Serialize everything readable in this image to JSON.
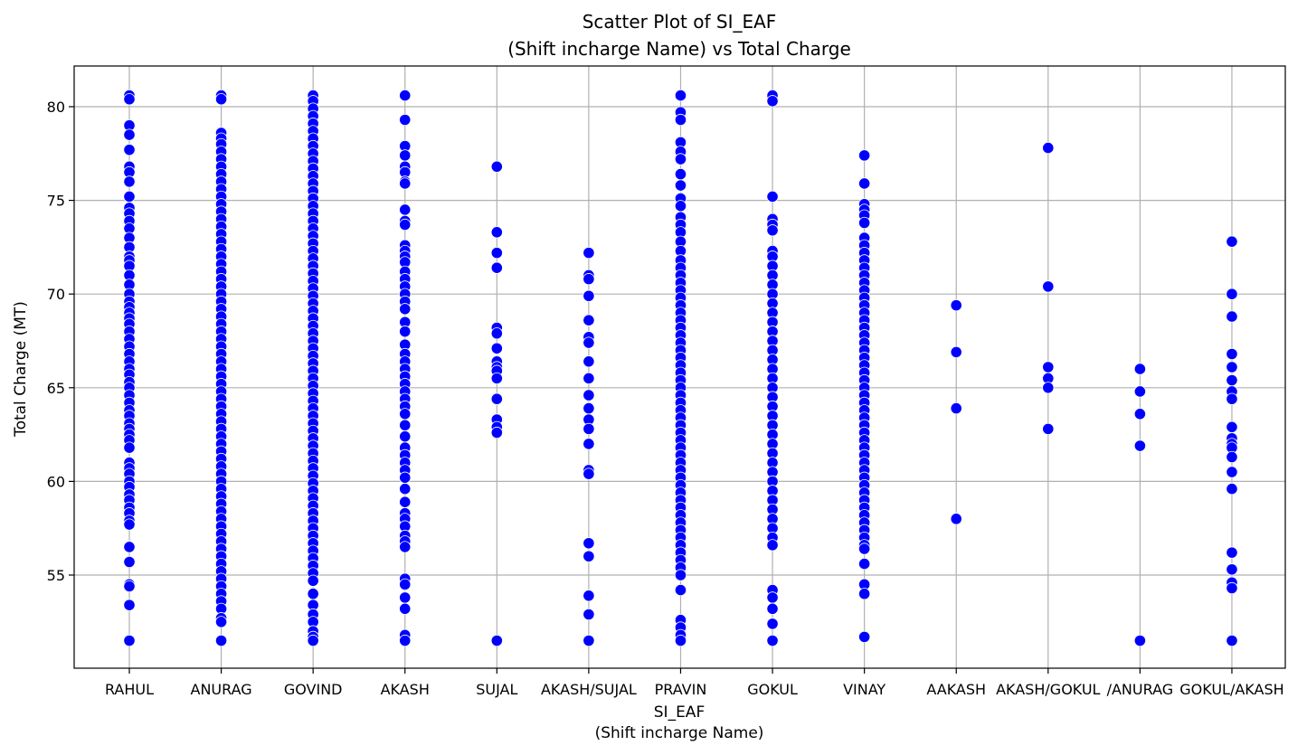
{
  "chart_data": {
    "type": "scatter",
    "title": [
      "Scatter Plot of SI_EAF",
      "(Shift incharge Name) vs Total Charge"
    ],
    "xlabel": [
      "SI_EAF",
      "(Shift incharge Name)"
    ],
    "ylabel": "Total Charge (MT)",
    "ylim": [
      50.0,
      82.2
    ],
    "yticks": [
      55,
      60,
      65,
      70,
      75,
      80
    ],
    "grid": true,
    "color": "#0000ff",
    "categories": [
      "RAHUL",
      "ANURAG",
      "GOVIND",
      "AKASH",
      "SUJAL",
      "AKASH/SUJAL",
      "PRAVIN",
      "GOKUL",
      "VINAY",
      "AAKASH",
      "AKASH/GOKUL",
      "/ANURAG",
      "GOKUL/AKASH"
    ],
    "points": {
      "RAHUL": [
        80.6,
        80.4,
        79.0,
        78.5,
        77.7,
        76.8,
        76.5,
        76.0,
        75.2,
        74.6,
        74.3,
        73.9,
        73.5,
        73.0,
        72.5,
        72.0,
        71.8,
        71.5,
        71.0,
        70.5,
        70.0,
        69.6,
        69.3,
        69.0,
        68.7,
        68.4,
        68.0,
        67.6,
        67.2,
        66.8,
        66.4,
        66.0,
        65.7,
        65.3,
        65.0,
        64.6,
        64.2,
        63.8,
        63.5,
        63.1,
        62.8,
        62.5,
        62.2,
        61.8,
        61.0,
        60.7,
        60.4,
        60.0,
        59.7,
        59.3,
        59.0,
        58.6,
        58.3,
        57.9,
        57.7,
        56.5,
        55.7,
        54.5,
        54.4,
        53.4,
        51.5
      ],
      "ANURAG": [
        80.6,
        80.4,
        78.6,
        78.3,
        78.0,
        77.6,
        77.2,
        76.8,
        76.4,
        76.0,
        75.6,
        75.2,
        74.8,
        74.4,
        74.0,
        73.6,
        73.2,
        72.8,
        72.4,
        72.0,
        71.6,
        71.2,
        70.8,
        70.4,
        70.0,
        69.6,
        69.2,
        68.8,
        68.4,
        68.0,
        67.6,
        67.2,
        66.8,
        66.4,
        66.0,
        65.6,
        65.2,
        64.8,
        64.4,
        64.0,
        63.6,
        63.2,
        62.8,
        62.4,
        62.0,
        61.6,
        61.2,
        60.8,
        60.4,
        60.0,
        59.6,
        59.2,
        58.8,
        58.4,
        58.0,
        57.6,
        57.2,
        56.8,
        56.4,
        56.0,
        55.6,
        55.2,
        54.8,
        54.4,
        54.0,
        53.6,
        53.2,
        52.7,
        52.5,
        51.5
      ],
      "GOVIND": [
        80.6,
        80.3,
        79.9,
        79.5,
        79.1,
        78.7,
        78.3,
        77.9,
        77.5,
        77.1,
        76.7,
        76.3,
        75.9,
        75.5,
        75.1,
        74.7,
        74.3,
        73.9,
        73.5,
        73.1,
        72.7,
        72.3,
        71.9,
        71.5,
        71.1,
        70.7,
        70.3,
        69.9,
        69.5,
        69.1,
        68.7,
        68.3,
        67.9,
        67.5,
        67.1,
        66.7,
        66.3,
        65.9,
        65.5,
        65.1,
        64.7,
        64.3,
        63.9,
        63.5,
        63.1,
        62.7,
        62.3,
        61.9,
        61.5,
        61.1,
        60.7,
        60.3,
        59.9,
        59.5,
        59.1,
        58.7,
        58.3,
        57.9,
        57.5,
        57.1,
        56.7,
        56.3,
        55.9,
        55.5,
        55.1,
        54.7,
        54.0,
        53.4,
        52.9,
        52.5,
        52.0,
        51.7,
        51.5
      ],
      "AKASH": [
        80.6,
        79.3,
        77.9,
        77.4,
        76.8,
        76.5,
        76.0,
        75.9,
        74.5,
        73.9,
        73.7,
        72.6,
        72.3,
        72.0,
        71.7,
        71.2,
        70.8,
        70.4,
        70.0,
        69.6,
        69.2,
        68.5,
        68.0,
        67.3,
        66.8,
        66.4,
        66.0,
        65.6,
        65.2,
        64.8,
        64.4,
        64.0,
        63.6,
        63.0,
        62.4,
        61.8,
        61.4,
        61.0,
        60.6,
        60.2,
        59.6,
        58.9,
        58.3,
        58.0,
        57.6,
        57.1,
        56.8,
        56.5,
        54.8,
        54.5,
        53.8,
        53.2,
        51.8,
        51.5
      ],
      "SUJAL": [
        76.8,
        73.3,
        72.2,
        71.4,
        68.2,
        67.9,
        67.1,
        66.4,
        66.1,
        65.9,
        65.5,
        64.4,
        63.3,
        62.9,
        62.6,
        51.5
      ],
      "AKASH/SUJAL": [
        72.2,
        71.0,
        70.8,
        69.9,
        68.6,
        67.7,
        67.4,
        66.4,
        65.5,
        64.6,
        63.9,
        63.3,
        62.8,
        62.0,
        60.6,
        60.4,
        56.7,
        56.0,
        53.9,
        52.9,
        51.5
      ],
      "PRAVIN": [
        80.6,
        79.7,
        79.3,
        78.1,
        77.6,
        77.2,
        76.4,
        75.8,
        75.1,
        74.7,
        74.1,
        73.7,
        73.3,
        72.8,
        72.3,
        71.8,
        71.4,
        71.0,
        70.6,
        70.2,
        69.8,
        69.4,
        69.0,
        68.6,
        68.2,
        67.8,
        67.4,
        67.0,
        66.6,
        66.2,
        65.8,
        65.4,
        65.0,
        64.6,
        64.2,
        63.8,
        63.4,
        63.0,
        62.6,
        62.2,
        61.8,
        61.4,
        61.0,
        60.6,
        60.2,
        59.8,
        59.4,
        59.0,
        58.6,
        58.2,
        57.8,
        57.4,
        57.0,
        56.6,
        56.2,
        55.8,
        55.4,
        55.0,
        54.2,
        52.6,
        52.2,
        51.8,
        51.5
      ],
      "GOKUL": [
        80.6,
        80.3,
        75.2,
        74.0,
        73.7,
        73.4,
        72.3,
        72.0,
        71.5,
        71.0,
        70.5,
        70.0,
        69.5,
        69.0,
        68.5,
        68.0,
        67.5,
        67.0,
        66.5,
        66.0,
        65.5,
        65.0,
        64.5,
        64.0,
        63.5,
        63.0,
        62.5,
        62.0,
        61.5,
        61.0,
        60.5,
        60.0,
        59.5,
        59.0,
        58.5,
        58.0,
        57.5,
        57.0,
        56.6,
        54.2,
        53.8,
        53.2,
        52.4,
        51.5
      ],
      "VINAY": [
        77.4,
        75.9,
        74.8,
        74.5,
        74.2,
        73.8,
        73.0,
        72.6,
        72.2,
        71.8,
        71.4,
        71.0,
        70.6,
        70.2,
        69.8,
        69.4,
        69.0,
        68.6,
        68.2,
        67.8,
        67.4,
        67.0,
        66.6,
        66.2,
        65.8,
        65.4,
        65.0,
        64.6,
        64.2,
        63.8,
        63.4,
        63.0,
        62.6,
        62.2,
        61.8,
        61.4,
        61.0,
        60.6,
        60.2,
        59.8,
        59.4,
        59.0,
        58.6,
        58.2,
        57.8,
        57.4,
        57.0,
        56.6,
        56.4,
        55.6,
        54.5,
        54.0,
        51.7
      ],
      "AAKASH": [
        69.4,
        66.9,
        63.9,
        58.0
      ],
      "AKASH/GOKUL": [
        77.8,
        70.4,
        66.1,
        65.5,
        65.0,
        62.8
      ],
      "/ANURAG": [
        66.0,
        64.8,
        63.6,
        61.9,
        51.5
      ],
      "GOKUL/AKASH": [
        72.8,
        70.0,
        68.8,
        66.8,
        66.1,
        65.4,
        64.8,
        64.4,
        62.9,
        62.3,
        62.0,
        61.8,
        61.3,
        60.5,
        59.6,
        56.2,
        55.3,
        54.6,
        54.3,
        51.5
      ]
    }
  }
}
